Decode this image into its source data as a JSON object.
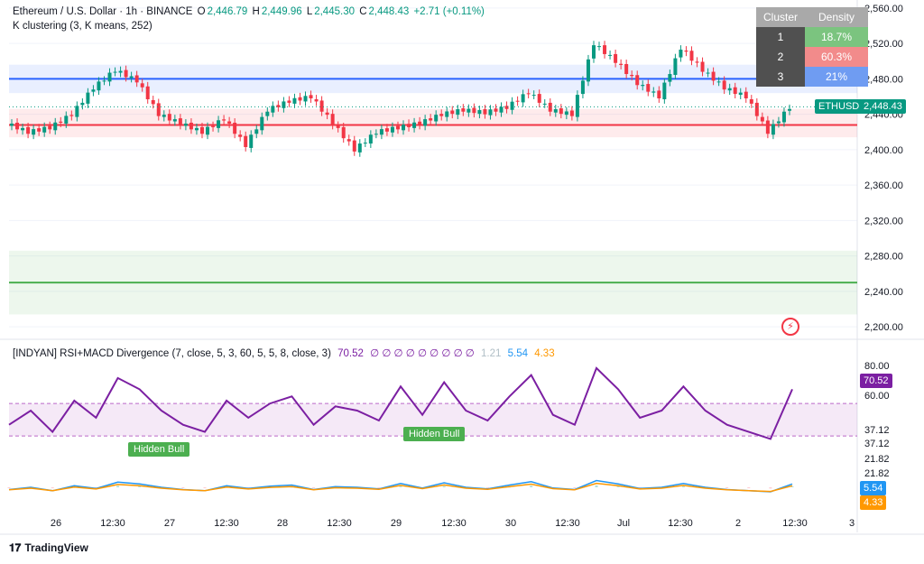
{
  "legend": {
    "symbol": "Ethereum / U.S. Dollar · 1h · BINANCE",
    "o_key": "O",
    "o_val": "2,446.79",
    "h_key": "H",
    "h_val": "2,449.96",
    "l_key": "L",
    "l_val": "2,445.30",
    "c_key": "C",
    "c_val": "2,448.43",
    "change": "+2.71 (+0.11%)",
    "indicator": "K clustering (3, K means, 252)"
  },
  "indicator_legend": {
    "name": "[INDYAN] RSI+MACD Divergence (7, close, 5, 3, 60, 5, 5, 8, close, 3)",
    "rsi": "70.52",
    "empties": "∅ ∅ ∅ ∅ ∅ ∅ ∅ ∅ ∅",
    "v1": "1.21",
    "v2": "5.54",
    "v3": "4.33"
  },
  "cluster_table": {
    "h1": "Cluster",
    "h2": "Density",
    "rows": [
      {
        "id": "1",
        "density": "18.7%",
        "color": "#7bc47f"
      },
      {
        "id": "2",
        "density": "60.3%",
        "color": "#f28b8b"
      },
      {
        "id": "3",
        "density": "21%",
        "color": "#6f9cf2"
      }
    ]
  },
  "ticker_tag": "ETHUSD",
  "last_price": "2,448.43",
  "divergence_labels": [
    "Hidden Bull",
    "Hidden Bull"
  ],
  "osc_axis": {
    "top": "80.00",
    "rsi_tag": "70.52",
    "mid": "60.00",
    "l1": "37.12",
    "l2": "37.12",
    "l3": "21.82",
    "l4": "21.82",
    "macd_tag": "5.54",
    "signal_tag": "4.33"
  },
  "time_labels": [
    "26",
    "12:30",
    "27",
    "12:30",
    "28",
    "12:30",
    "29",
    "12:30",
    "30",
    "12:30",
    "Jul",
    "12:30",
    "2",
    "12:30",
    "3"
  ],
  "branding": "TradingView",
  "colors": {
    "up": "#089981",
    "down": "#f23645",
    "blue_line": "#2962ff",
    "red_line": "#f23645",
    "green_line": "#4caf50",
    "rsi": "#7b1fa2",
    "macd": "#2196f3",
    "signal": "#ff9800"
  },
  "chart_data": {
    "type": "line",
    "title": "Ethereum / U.S. Dollar · 1h · BINANCE",
    "y_axis_ticks": [
      2560,
      2520,
      2480,
      2440,
      2400,
      2360,
      2320,
      2280,
      2240,
      2200
    ],
    "ylim": [
      2190,
      2565
    ],
    "cluster_levels": [
      {
        "cluster": "3",
        "center": 2480,
        "band": [
          2464,
          2496
        ]
      },
      {
        "cluster": "2",
        "center": 2428,
        "band": [
          2414,
          2446
        ]
      },
      {
        "cluster": "1",
        "center": 2250,
        "band": [
          2214,
          2286
        ]
      }
    ],
    "price_x": [
      0,
      5,
      10,
      15,
      20,
      25,
      30,
      35,
      40,
      45,
      50,
      55,
      60,
      65,
      70,
      75,
      80,
      85,
      90,
      95,
      100,
      105,
      110,
      115,
      120,
      125,
      130,
      135,
      140,
      145,
      150,
      155,
      160,
      165,
      170,
      175,
      180
    ],
    "price_close": [
      2430,
      2420,
      2425,
      2440,
      2470,
      2490,
      2478,
      2440,
      2430,
      2420,
      2435,
      2405,
      2445,
      2455,
      2460,
      2430,
      2400,
      2420,
      2425,
      2430,
      2440,
      2445,
      2442,
      2448,
      2465,
      2445,
      2440,
      2520,
      2500,
      2475,
      2460,
      2515,
      2490,
      2470,
      2460,
      2420,
      2448
    ],
    "rsi_ticks": [
      80,
      60,
      37.12,
      21.82
    ],
    "rsi_series": [
      45,
      55,
      40,
      62,
      50,
      78,
      70,
      55,
      45,
      40,
      62,
      50,
      60,
      65,
      45,
      58,
      55,
      48,
      72,
      52,
      75,
      55,
      48,
      65,
      80,
      52,
      45,
      85,
      70,
      50,
      55,
      72,
      55,
      45,
      40,
      35,
      70
    ]
  }
}
